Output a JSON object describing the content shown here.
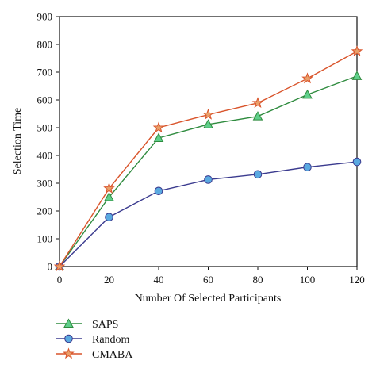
{
  "chart_data": {
    "type": "line",
    "xlabel": "Number Of Selected Participants",
    "ylabel": "Selection Time",
    "x": [
      0,
      20,
      40,
      60,
      80,
      100,
      120
    ],
    "xlim": [
      0,
      120
    ],
    "ylim": [
      0,
      900
    ],
    "xticks": [
      0,
      20,
      40,
      60,
      80,
      100,
      120
    ],
    "yticks": [
      0,
      100,
      200,
      300,
      400,
      500,
      600,
      700,
      800,
      900
    ],
    "grid": false,
    "legend_position": "bottom-left",
    "series": [
      {
        "name": "SAPS",
        "values": [
          0,
          250,
          463,
          512,
          541,
          619,
          686
        ],
        "color": "#2e8b3e",
        "marker": "triangle",
        "marker_fill": "#5fcf8a"
      },
      {
        "name": "Random",
        "values": [
          0,
          178,
          272,
          313,
          332,
          358,
          377
        ],
        "color": "#3b3b8f",
        "marker": "circle",
        "marker_fill": "#5aa9e0"
      },
      {
        "name": "CMABA",
        "values": [
          0,
          281,
          500,
          547,
          589,
          677,
          775
        ],
        "color": "#d9542b",
        "marker": "star",
        "marker_fill": "#e9a06a"
      }
    ]
  }
}
